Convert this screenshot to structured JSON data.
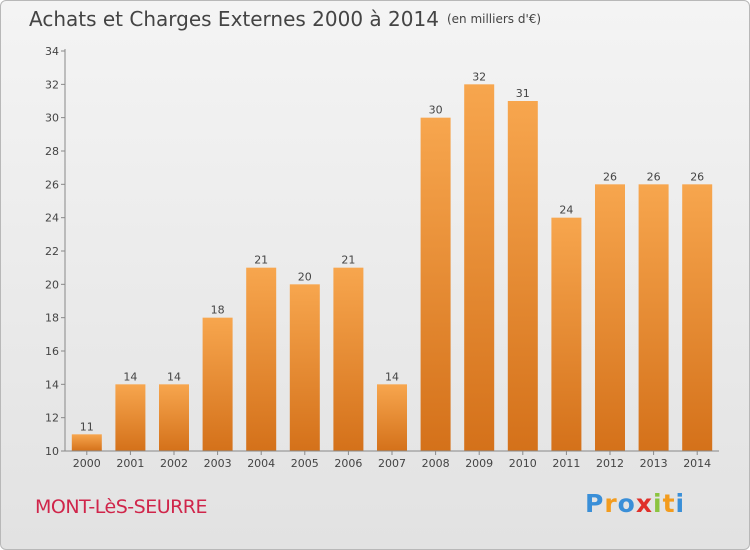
{
  "header": {
    "title": "Achats et Charges Externes 2000 à 2014",
    "unit": "(en milliers d'€)"
  },
  "footer": {
    "town": "MONT-LèS-SEURRE",
    "logo_letters": [
      "P",
      "r",
      "o",
      "x",
      "i",
      "t",
      "i"
    ],
    "logo_colors": [
      "#3a8fd8",
      "#f39c1e",
      "#3a8fd8",
      "#e0302a",
      "#8bc43f",
      "#f39c1e",
      "#3a8fd8"
    ]
  },
  "colors": {
    "bar_top": "#f7a64e",
    "bar_bottom": "#d4711a",
    "town": "#d0254a"
  },
  "chart_data": {
    "type": "bar",
    "title": "Achats et Charges Externes 2000 à 2014",
    "subtitle": "(en milliers d'€)",
    "xlabel": "",
    "ylabel": "",
    "categories": [
      "2000",
      "2001",
      "2002",
      "2003",
      "2004",
      "2005",
      "2006",
      "2007",
      "2008",
      "2009",
      "2010",
      "2011",
      "2012",
      "2013",
      "2014"
    ],
    "values": [
      11,
      14,
      14,
      18,
      21,
      20,
      21,
      14,
      30,
      32,
      31,
      24,
      26,
      26,
      26
    ],
    "ylim": [
      10,
      34
    ],
    "yticks": [
      10,
      12,
      14,
      16,
      18,
      20,
      22,
      24,
      26,
      28,
      30,
      32,
      34
    ],
    "grid": false,
    "legend": "none"
  }
}
